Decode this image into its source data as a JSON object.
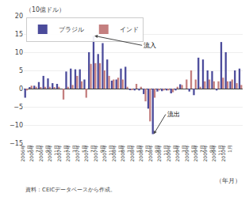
{
  "chart_data": {
    "type": "bar",
    "ylabel": "（10億ドル）",
    "xlabel": "（年月）",
    "source": "資料：CEICデータベースから作成。",
    "categories": [
      "2006年\n5月",
      null,
      "2006年\n7月",
      null,
      "2006年\n9月",
      null,
      "2006年\n11月",
      null,
      "2007年\n1月",
      null,
      "2007年\n3月",
      null,
      "2007年\n5月",
      null,
      "2007年\n7月",
      null,
      "2007年\n9月",
      null,
      "2007年\n11月",
      null,
      "2008年\n1月",
      null,
      "2008年\n3月",
      null,
      "2008年\n5月",
      null,
      "2008年\n7月",
      null,
      "2008年\n9月",
      null,
      "2008年\n11月",
      null,
      "2009年\n1月",
      null,
      "2009年\n3月",
      null,
      "2009年\n5月",
      null,
      "2009年\n7月",
      null,
      "2009年\n9月",
      null,
      "2009年\n11月",
      null,
      "2010年\n1月",
      null,
      null,
      null
    ],
    "series": [
      {
        "name": "ブラジル",
        "color": "#4b4b9b",
        "values": [
          -2.5,
          0.3,
          0.8,
          1.8,
          3.5,
          2.8,
          1.5,
          1.3,
          0.0,
          4.7,
          5.5,
          5.3,
          5.3,
          2.5,
          10.0,
          14.5,
          9.5,
          12.5,
          8.0,
          2.2,
          2.5,
          5.5,
          6.0,
          -0.3,
          -0.5,
          -0.5,
          -1.5,
          -5.5,
          -12.5,
          -0.8,
          -0.7,
          -0.5,
          -1.3,
          -0.5,
          1.2,
          0.0,
          -0.8,
          -1.8,
          8.5,
          8.0,
          5.0,
          4.8,
          -0.5,
          12.8,
          10.0,
          2.0,
          5.0,
          5.5
        ]
      },
      {
        "name": "インド",
        "color": "#c47f7f",
        "values": [
          -0.5,
          0.8,
          0.5,
          0.3,
          0.5,
          0.5,
          0.3,
          0.5,
          -3.0,
          0.5,
          1.0,
          3.5,
          2.0,
          -2.5,
          6.8,
          7.0,
          7.0,
          5.0,
          3.5,
          2.5,
          3.0,
          2.5,
          0.5,
          -0.3,
          1.3,
          0.5,
          -3.5,
          -9.0,
          -2.5,
          -0.5,
          -0.5,
          -0.5,
          -1.0,
          0.5,
          1.0,
          2.5,
          5.0,
          2.5,
          0.5,
          2.0,
          2.5,
          2.0,
          2.0,
          3.0,
          2.0,
          2.5,
          1.5,
          1.0
        ]
      }
    ],
    "annotations": [
      {
        "text": "流入",
        "x": 15,
        "y": 14.5
      },
      {
        "text": "流出",
        "x": 28,
        "y": -12.5
      }
    ],
    "ylim": [
      -15,
      20
    ],
    "yticks": [
      -15,
      -10,
      -5,
      0,
      5,
      10,
      15,
      20
    ],
    "grid": true,
    "legend": "upper left"
  }
}
